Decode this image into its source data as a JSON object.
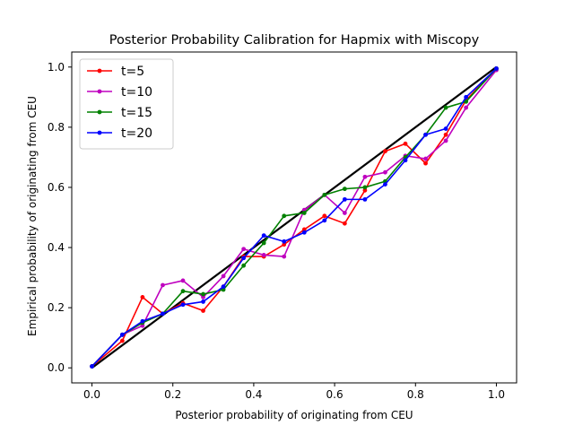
{
  "chart_data": {
    "type": "line",
    "title": "Posterior Probability Calibration for Hapmix with Miscopy",
    "xlabel": "Posterior probability of originating from CEU",
    "ylabel": "Empirical probability of originating from CEU",
    "xlim": [
      -0.05,
      1.05
    ],
    "ylim": [
      -0.05,
      1.05
    ],
    "xticks": [
      "0.0",
      "0.2",
      "0.4",
      "0.6",
      "0.8",
      "1.0"
    ],
    "yticks": [
      "0.0",
      "0.2",
      "0.4",
      "0.6",
      "0.8",
      "1.0"
    ],
    "grid": false,
    "legend_position": "top-left",
    "reference_line": {
      "x": [
        0,
        1
      ],
      "y": [
        0,
        1
      ],
      "color": "#000000"
    },
    "x": [
      0.0,
      0.075,
      0.125,
      0.175,
      0.225,
      0.275,
      0.325,
      0.375,
      0.425,
      0.475,
      0.525,
      0.575,
      0.625,
      0.675,
      0.725,
      0.775,
      0.825,
      0.875,
      0.925,
      1.0
    ],
    "series": [
      {
        "name": "t=5",
        "color": "#ff0000",
        "values": [
          0.005,
          0.09,
          0.235,
          0.18,
          0.215,
          0.19,
          0.27,
          0.37,
          0.37,
          0.41,
          0.46,
          0.505,
          0.48,
          0.59,
          0.72,
          0.745,
          0.68,
          0.775,
          0.89,
          0.995
        ]
      },
      {
        "name": "t=10",
        "color": "#bf00bf",
        "values": [
          0.005,
          0.11,
          0.14,
          0.275,
          0.29,
          0.235,
          0.305,
          0.395,
          0.375,
          0.37,
          0.525,
          0.575,
          0.515,
          0.635,
          0.65,
          0.705,
          0.695,
          0.755,
          0.865,
          0.99
        ]
      },
      {
        "name": "t=15",
        "color": "#008000",
        "values": [
          0.005,
          0.11,
          0.15,
          0.18,
          0.255,
          0.245,
          0.26,
          0.34,
          0.415,
          0.505,
          0.515,
          0.575,
          0.595,
          0.6,
          0.62,
          0.7,
          0.775,
          0.865,
          0.885,
          0.995
        ]
      },
      {
        "name": "t=20",
        "color": "#0000ff",
        "values": [
          0.005,
          0.11,
          0.155,
          0.18,
          0.21,
          0.22,
          0.27,
          0.365,
          0.44,
          0.42,
          0.45,
          0.49,
          0.56,
          0.56,
          0.61,
          0.69,
          0.775,
          0.795,
          0.9,
          0.995
        ]
      }
    ]
  }
}
